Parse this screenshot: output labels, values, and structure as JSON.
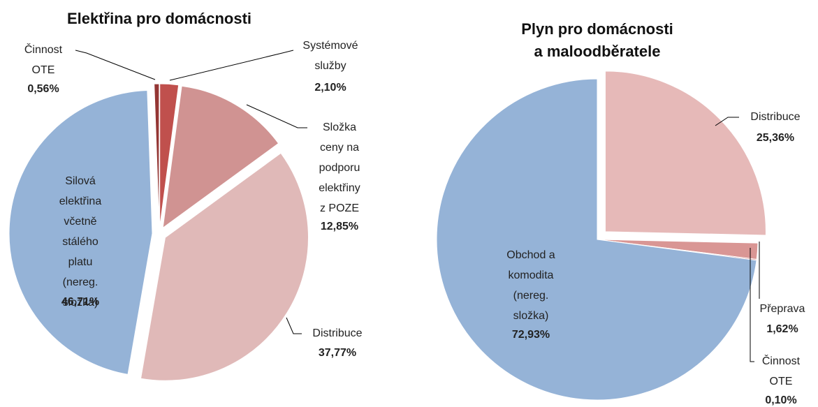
{
  "chart_data": [
    {
      "type": "pie",
      "title": "Elektřina pro domácnosti",
      "categories": [
        "Činnost\nOTE",
        "Systémové\nslužby",
        "Složka\nceny na\npodporu\nelektřiny\nz POZE",
        "Distribuce",
        "Silová\nelektřina\nvčetně\nstálého\nplatu\n(nereg.\nsložka)"
      ],
      "values": [
        0.56,
        2.1,
        12.85,
        37.77,
        46.71
      ],
      "value_labels": [
        "0,56%",
        "2,10%",
        "12,85%",
        "37,77%",
        "46,71%"
      ],
      "colors": [
        "#943634",
        "#c0504d",
        "#d09392",
        "#e0b9b8",
        "#95b3d7"
      ]
    },
    {
      "type": "pie",
      "title": "Plyn pro domácnosti\na maloodběratele",
      "categories": [
        "Distribuce",
        "Přeprava",
        "Činnost\nOTE",
        "Obchod a\nkomodita\n(nereg.\nsložka)"
      ],
      "values": [
        25.36,
        1.62,
        0.1,
        72.93
      ],
      "value_labels": [
        "25,36%",
        "1,62%",
        "0,10%",
        "72,93%"
      ],
      "colors": [
        "#e6b9b8",
        "#d99694",
        "#c0504d",
        "#95b3d7"
      ]
    }
  ]
}
